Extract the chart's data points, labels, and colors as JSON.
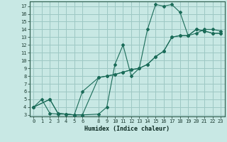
{
  "title": "",
  "xlabel": "Humidex (Indice chaleur)",
  "bg_color": "#c8e8e4",
  "grid_color": "#9dc8c4",
  "line_color": "#1a6b58",
  "xlim": [
    -0.5,
    23.5
  ],
  "ylim": [
    2.8,
    17.6
  ],
  "xticks": [
    0,
    1,
    2,
    3,
    4,
    5,
    6,
    8,
    9,
    10,
    11,
    12,
    13,
    14,
    15,
    16,
    17,
    18,
    19,
    20,
    21,
    22,
    23
  ],
  "yticks": [
    3,
    4,
    5,
    6,
    7,
    8,
    9,
    10,
    11,
    12,
    13,
    14,
    15,
    16,
    17
  ],
  "curve1_x": [
    0,
    1,
    2,
    3,
    4,
    5,
    6,
    8,
    9,
    10,
    11,
    12,
    13,
    14,
    15,
    16,
    17,
    18,
    19,
    20,
    21,
    22,
    23
  ],
  "curve1_y": [
    4,
    5,
    3.2,
    3.1,
    3.1,
    3.0,
    3.0,
    3.1,
    4.0,
    9.5,
    12.0,
    8.0,
    9.0,
    14.0,
    17.2,
    17.0,
    17.2,
    16.2,
    13.2,
    13.5,
    14.0,
    14.0,
    13.8
  ],
  "curve2_x": [
    0,
    2,
    3,
    4,
    5,
    6,
    8,
    9,
    10,
    11,
    12,
    13,
    14,
    15,
    16,
    17,
    18,
    19,
    20,
    21,
    22,
    23
  ],
  "curve2_y": [
    4,
    5,
    3.2,
    3.1,
    3.0,
    6.0,
    7.8,
    8.0,
    8.2,
    8.5,
    8.8,
    9.0,
    9.5,
    10.5,
    11.2,
    13.0,
    13.2,
    13.2,
    14.0,
    13.8,
    13.5,
    13.5
  ],
  "curve3_x": [
    0,
    2,
    3,
    4,
    5,
    6,
    8,
    9,
    10,
    11,
    12,
    13,
    14,
    15,
    16,
    17,
    18,
    19,
    20,
    21,
    22,
    23
  ],
  "curve3_y": [
    4,
    5,
    3.2,
    3.1,
    3.0,
    3.0,
    7.8,
    8.0,
    8.2,
    8.5,
    8.8,
    9.0,
    9.5,
    10.5,
    11.2,
    13.0,
    13.2,
    13.2,
    14.0,
    13.8,
    13.5,
    13.5
  ]
}
